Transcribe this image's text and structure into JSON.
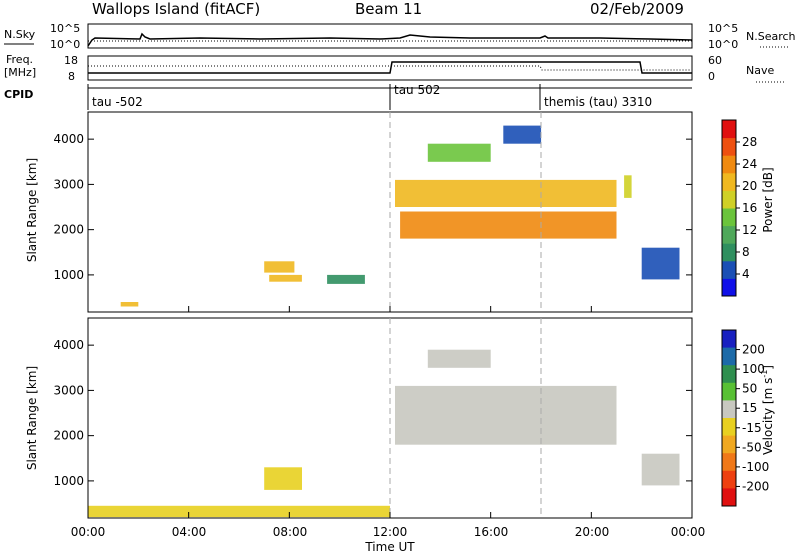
{
  "header": {
    "site": "Wallops Island (fitACF)",
    "beam": "Beam 11",
    "date": "02/Feb/2009"
  },
  "top_strip": {
    "left_label": "N.Sky",
    "right_label": "N.Search",
    "left_ticks": [
      "10^5",
      "10^0"
    ],
    "right_ticks": [
      "10^5",
      "10^0"
    ]
  },
  "freq_strip": {
    "left_label_1": "Freq.",
    "left_label_2": "[MHz]",
    "right_label": "Nave",
    "left_ticks": [
      "18",
      "8"
    ],
    "right_ticks": [
      "60",
      "0"
    ]
  },
  "cpid": {
    "label": "CPID",
    "segments": [
      "tau -502",
      "tau 502",
      "themis (tau) 3310"
    ]
  },
  "colorbars": {
    "power": {
      "label": "Power [dB]",
      "ticks": [
        "4",
        "8",
        "12",
        "16",
        "20",
        "24",
        "28"
      ],
      "colors": [
        "#1010e8",
        "#1a4fb5",
        "#2f8f5f",
        "#4fa85a",
        "#6bc43c",
        "#cfd026",
        "#f0b820",
        "#f08a10",
        "#ee5010",
        "#e01010"
      ]
    },
    "velocity": {
      "label": "Velocity [m s",
      "superscript": "-1",
      "label_end": "]",
      "ticks": [
        "200",
        "100",
        "50",
        "15",
        "-15",
        "-50",
        "-100",
        "-200"
      ],
      "colors": [
        "#1820c0",
        "#1c6aa8",
        "#2f8f4f",
        "#58c034",
        "#c8c8c0",
        "#e8d020",
        "#f0a820",
        "#f07818",
        "#ee4010",
        "#e01010"
      ]
    }
  },
  "axes": {
    "ylabel": "Slant Range [km]",
    "yticks": [
      "1000",
      "2000",
      "3000",
      "4000"
    ],
    "xticks": [
      "00:00",
      "04:00",
      "08:00",
      "12:00",
      "16:00",
      "20:00",
      "00:00"
    ],
    "xlabel": "Time UT"
  },
  "chart_data": {
    "type": "heatmap",
    "title": "Wallops Island (fitACF) Beam 11 02/Feb/2009",
    "xlabel": "Time UT",
    "ylabel": "Slant Range [km]",
    "x_range_hours": [
      0,
      24
    ],
    "ylim": [
      180,
      4600
    ],
    "cpid_boundaries_hours": [
      12,
      18
    ],
    "panels": [
      {
        "name": "Power",
        "unit": "dB",
        "colorbar_range": [
          0,
          32
        ],
        "regions": [
          {
            "t": [
              1.3,
              2.0
            ],
            "range_km": [
              300,
              400
            ],
            "value": 20
          },
          {
            "t": [
              7.0,
              8.2
            ],
            "range_km": [
              1050,
              1300
            ],
            "value": 20
          },
          {
            "t": [
              7.2,
              8.5
            ],
            "range_km": [
              850,
              1000
            ],
            "value": 22
          },
          {
            "t": [
              9.5,
              11.0
            ],
            "range_km": [
              800,
              1000
            ],
            "value": 8
          },
          {
            "t": [
              12.2,
              21.0
            ],
            "range_km": [
              2500,
              3100
            ],
            "value": 20
          },
          {
            "t": [
              12.4,
              21.0
            ],
            "range_km": [
              1800,
              2400
            ],
            "value": 24
          },
          {
            "t": [
              13.5,
              16.0
            ],
            "range_km": [
              3500,
              3900
            ],
            "value": 14
          },
          {
            "t": [
              16.5,
              18.0
            ],
            "range_km": [
              3900,
              4300
            ],
            "value": 6
          },
          {
            "t": [
              21.3,
              21.6
            ],
            "range_km": [
              2700,
              3200
            ],
            "value": 16
          },
          {
            "t": [
              22.0,
              23.5
            ],
            "range_km": [
              900,
              1600
            ],
            "value": 6
          }
        ]
      },
      {
        "name": "Velocity",
        "unit": "m s-1",
        "colorbar_range": [
          -200,
          200
        ],
        "regions": [
          {
            "t": [
              7.0,
              8.5
            ],
            "range_km": [
              800,
              1300
            ],
            "value": -40
          },
          {
            "t": [
              0.0,
              12.0
            ],
            "range_km": [
              200,
              450
            ],
            "value": -20
          },
          {
            "t": [
              12.2,
              21.0
            ],
            "range_km": [
              1800,
              3100
            ],
            "value": 0
          },
          {
            "t": [
              13.5,
              16.0
            ],
            "range_km": [
              3500,
              3900
            ],
            "value": 0
          },
          {
            "t": [
              22.0,
              23.5
            ],
            "range_km": [
              900,
              1600
            ],
            "value": 30
          }
        ]
      }
    ]
  }
}
